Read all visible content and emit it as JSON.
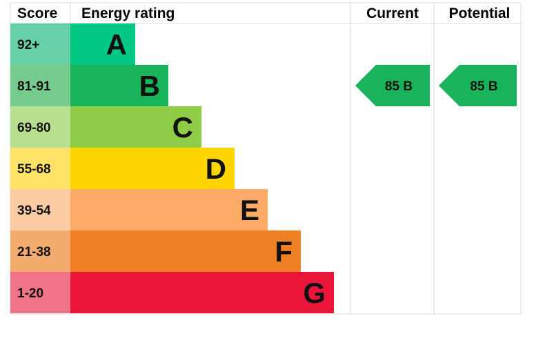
{
  "chart_data": {
    "type": "bar",
    "headers": {
      "score": "Score",
      "energy_rating": "Energy rating",
      "current": "Current",
      "potential": "Potential"
    },
    "bands": [
      {
        "score": "92+",
        "letter": "A",
        "color": "#00C781",
        "score_color": "#66D1A6"
      },
      {
        "score": "81-91",
        "letter": "B",
        "color": "#19B459",
        "score_color": "#75CC8E"
      },
      {
        "score": "69-80",
        "letter": "C",
        "color": "#8DCE46",
        "score_color": "#B8E08F"
      },
      {
        "score": "55-68",
        "letter": "D",
        "color": "#FFD500",
        "score_color": "#FFE366"
      },
      {
        "score": "39-54",
        "letter": "E",
        "color": "#FCAA65",
        "score_color": "#FDCBA1"
      },
      {
        "score": "21-38",
        "letter": "F",
        "color": "#EF8023",
        "score_color": "#F4AB6F"
      },
      {
        "score": "1-20",
        "letter": "G",
        "color": "#E9153B",
        "score_color": "#F07388"
      }
    ],
    "current": {
      "value": 85,
      "band": "B",
      "label": "85  B",
      "color": "#19B459"
    },
    "potential": {
      "value": 85,
      "band": "B",
      "label": "85  B",
      "color": "#19B459"
    },
    "border_color": "#D9D9D9"
  }
}
